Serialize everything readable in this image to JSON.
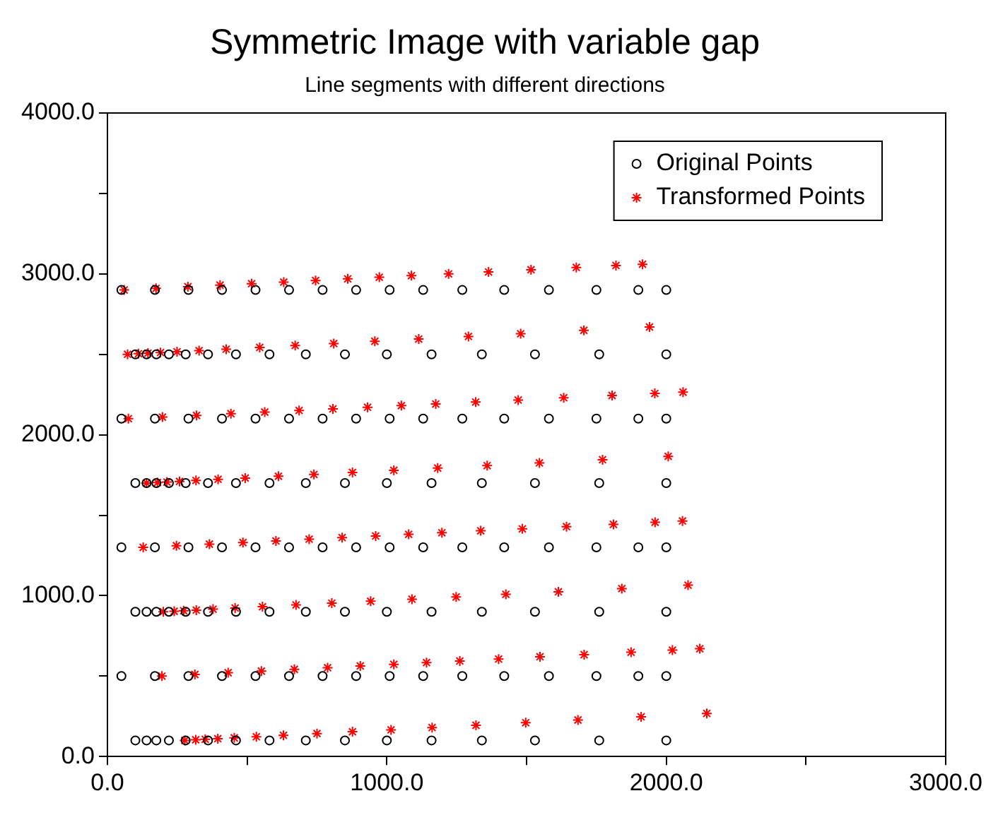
{
  "chart_data": {
    "type": "scatter",
    "title": "Symmetric Image with variable gap",
    "subtitle": "Line segments with different directions",
    "xlim": [
      0,
      3000
    ],
    "ylim": [
      0,
      4000
    ],
    "xticks": [
      {
        "value": 0,
        "label": "0.0"
      },
      {
        "value": 500,
        "label": null
      },
      {
        "value": 1000,
        "label": "1000.0"
      },
      {
        "value": 1500,
        "label": null
      },
      {
        "value": 2000,
        "label": "2000.0"
      },
      {
        "value": 2500,
        "label": null
      },
      {
        "value": 3000,
        "label": "3000.0"
      }
    ],
    "yticks": [
      {
        "value": 0,
        "label": "0.0"
      },
      {
        "value": 500,
        "label": null
      },
      {
        "value": 1000,
        "label": "1000.0"
      },
      {
        "value": 1500,
        "label": null
      },
      {
        "value": 2000,
        "label": "2000.0"
      },
      {
        "value": 2500,
        "label": null
      },
      {
        "value": 3000,
        "label": "3000.0"
      },
      {
        "value": 3500,
        "label": null
      },
      {
        "value": 4000,
        "label": "4000.0"
      }
    ],
    "grid": false,
    "legend": "top right",
    "series": [
      {
        "name": "Original Points",
        "color": "#000000",
        "marker": "circle",
        "x": [
          100,
          140,
          175,
          220,
          280,
          360,
          460,
          580,
          710,
          850,
          1000,
          1160,
          1340,
          1530,
          1760,
          2000,
          50,
          170,
          290,
          410,
          530,
          650,
          770,
          890,
          1010,
          1130,
          1270,
          1420,
          1580,
          1750,
          1900,
          2000,
          100,
          140,
          175,
          220,
          280,
          360,
          460,
          580,
          710,
          850,
          1000,
          1160,
          1340,
          1530,
          1760,
          2000,
          50,
          170,
          290,
          410,
          530,
          650,
          770,
          890,
          1010,
          1130,
          1270,
          1420,
          1580,
          1750,
          1900,
          2000,
          100,
          140,
          175,
          220,
          280,
          360,
          460,
          580,
          710,
          850,
          1000,
          1160,
          1340,
          1530,
          1760,
          2000,
          50,
          170,
          290,
          410,
          530,
          650,
          770,
          890,
          1010,
          1130,
          1270,
          1420,
          1580,
          1750,
          1900,
          2000,
          100,
          140,
          175,
          220,
          280,
          360,
          460,
          580,
          710,
          850,
          1000,
          1160,
          1340,
          1530,
          1760,
          2000,
          50,
          170,
          290,
          410,
          530,
          650,
          770,
          890,
          1010,
          1130,
          1270,
          1420,
          1580,
          1750,
          1900,
          2000
        ],
        "values": [
          100,
          100,
          100,
          100,
          100,
          100,
          100,
          100,
          100,
          100,
          100,
          100,
          100,
          100,
          100,
          100,
          500,
          500,
          500,
          500,
          500,
          500,
          500,
          500,
          500,
          500,
          500,
          500,
          500,
          500,
          500,
          500,
          900,
          900,
          900,
          900,
          900,
          900,
          900,
          900,
          900,
          900,
          900,
          900,
          900,
          900,
          900,
          900,
          1300,
          1300,
          1300,
          1300,
          1300,
          1300,
          1300,
          1300,
          1300,
          1300,
          1300,
          1300,
          1300,
          1300,
          1300,
          1300,
          1700,
          1700,
          1700,
          1700,
          1700,
          1700,
          1700,
          1700,
          1700,
          1700,
          1700,
          1700,
          1700,
          1700,
          1700,
          1700,
          2100,
          2100,
          2100,
          2100,
          2100,
          2100,
          2100,
          2100,
          2100,
          2100,
          2100,
          2100,
          2100,
          2100,
          2100,
          2100,
          2500,
          2500,
          2500,
          2500,
          2500,
          2500,
          2500,
          2500,
          2500,
          2500,
          2500,
          2500,
          2500,
          2500,
          2500,
          2500,
          2900,
          2900,
          2900,
          2900,
          2900,
          2900,
          2900,
          2900,
          2900,
          2900,
          2900,
          2900,
          2900,
          2900,
          2900,
          2900
        ]
      },
      {
        "name": "Transformed Points",
        "color": "#ff0000",
        "marker": "cross",
        "x": [
          277,
          316,
          350,
          395,
          454,
          533,
          630,
          750,
          877,
          1015,
          1162,
          1319,
          1497,
          1684,
          1910,
          2145,
          195,
          313,
          432,
          551,
          669,
          788,
          905,
          1025,
          1142,
          1261,
          1400,
          1548,
          1706,
          1874,
          2022,
          2120,
          200,
          239,
          273,
          318,
          378,
          457,
          555,
          675,
          803,
          942,
          1090,
          1248,
          1426,
          1614,
          1841,
          2078,
          128,
          247,
          365,
          485,
          603,
          722,
          840,
          960,
          1078,
          1197,
          1336,
          1485,
          1643,
          1811,
          1960,
          2058,
          140,
          179,
          213,
          258,
          317,
          396,
          493,
          612,
          739,
          877,
          1025,
          1182,
          1359,
          1546,
          1772,
          2007,
          75,
          197,
          319,
          442,
          563,
          686,
          807,
          931,
          1052,
          1175,
          1318,
          1470,
          1633,
          1806,
          1959,
          2060,
          72,
          111,
          145,
          190,
          249,
          328,
          425,
          545,
          672,
          810,
          957,
          1114,
          1292,
          1479,
          1705,
          1940,
          60,
          174,
          288,
          403,
          516,
          631,
          745,
          860,
          973,
          1088,
          1221,
          1364,
          1516,
          1678,
          1820,
          1915
        ],
        "values": [
          100,
          104,
          107,
          111,
          116,
          123,
          132,
          143,
          154,
          166,
          180,
          194,
          210,
          227,
          247,
          268,
          500,
          510,
          521,
          531,
          542,
          552,
          563,
          573,
          584,
          594,
          606,
          620,
          633,
          648,
          661,
          670,
          900,
          903,
          906,
          910,
          916,
          923,
          931,
          942,
          953,
          965,
          978,
          992,
          1008,
          1024,
          1044,
          1065,
          1300,
          1310,
          1320,
          1330,
          1340,
          1351,
          1361,
          1371,
          1381,
          1391,
          1403,
          1415,
          1429,
          1443,
          1456,
          1464,
          1700,
          1703,
          1706,
          1710,
          1716,
          1723,
          1731,
          1742,
          1753,
          1766,
          1779,
          1793,
          1808,
          1825,
          1845,
          1866,
          2100,
          2110,
          2120,
          2131,
          2141,
          2151,
          2161,
          2171,
          2181,
          2191,
          2203,
          2216,
          2230,
          2244,
          2257,
          2265,
          2500,
          2504,
          2507,
          2511,
          2516,
          2523,
          2532,
          2543,
          2555,
          2567,
          2581,
          2595,
          2611,
          2628,
          2649,
          2670,
          2900,
          2910,
          2920,
          2930,
          2939,
          2949,
          2959,
          2969,
          2979,
          2989,
          3000,
          3012,
          3026,
          3040,
          3052,
          3060
        ]
      }
    ]
  }
}
